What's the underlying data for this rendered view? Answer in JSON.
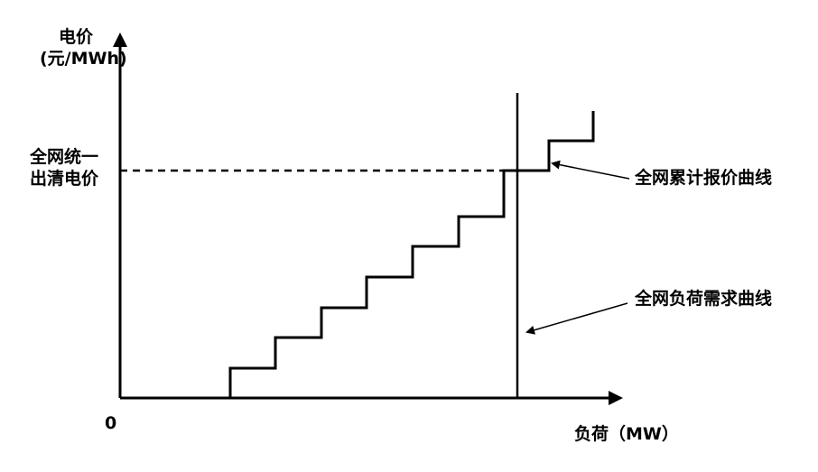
{
  "y_axis": {
    "title_line1": "电价",
    "title_line2": "(元/MWh)"
  },
  "x_axis": {
    "title": "负荷（MW）"
  },
  "origin_label": "0",
  "clearing_price": {
    "line1": "全网统一",
    "line2": "出清电价"
  },
  "callouts": {
    "supply_curve": "全网累计报价曲线",
    "demand_curve": "全网负荷需求曲线"
  },
  "chart_data": {
    "type": "line",
    "x": [
      0,
      1,
      2,
      3,
      4,
      5,
      6,
      7,
      8
    ],
    "y": [
      0,
      1,
      2,
      3,
      4,
      5,
      6,
      7,
      8
    ]
  }
}
